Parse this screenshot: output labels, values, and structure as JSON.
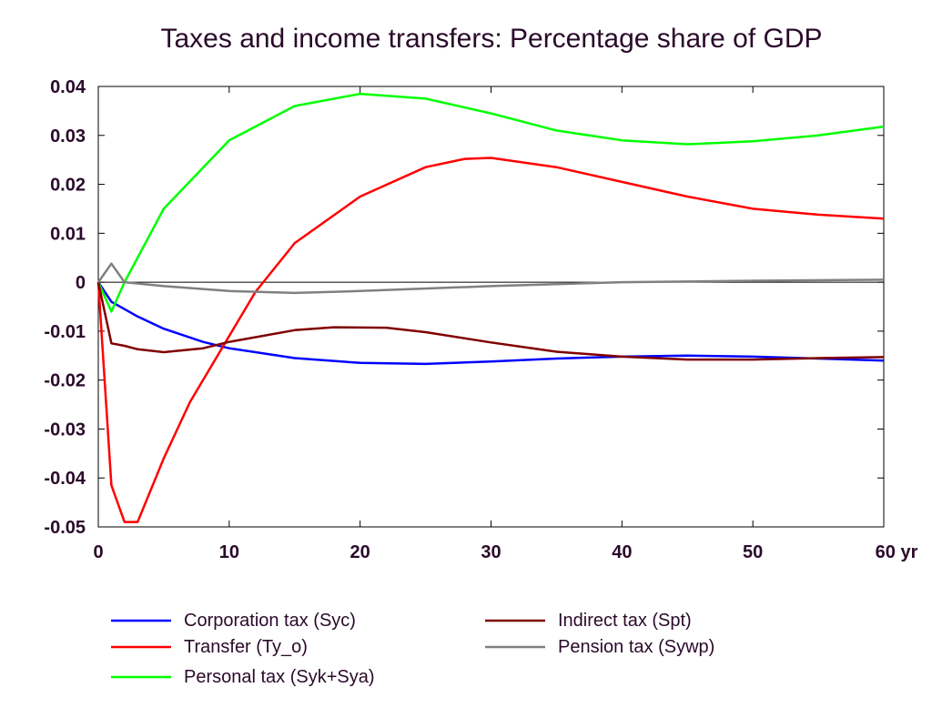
{
  "chart_data": {
    "type": "line",
    "title": "Taxes and income transfers: Percentage share of GDP",
    "xlabel": "",
    "ylabel": "",
    "xlim": [
      0,
      60
    ],
    "ylim": [
      -0.05,
      0.04
    ],
    "x_ticks": [
      0,
      10,
      20,
      30,
      40,
      50,
      60
    ],
    "x_tick_labels": [
      "0",
      "10",
      "20",
      "30",
      "40",
      "50",
      "60 yr"
    ],
    "y_ticks": [
      0.04,
      0.03,
      0.02,
      0.01,
      0,
      -0.01,
      -0.02,
      -0.03,
      -0.04,
      -0.05
    ],
    "y_tick_labels": [
      "0.04",
      "0.03",
      "0.02",
      "0.01",
      "0",
      "-0.01",
      "-0.02",
      "-0.03",
      "-0.04",
      "-0.05"
    ],
    "grid": false,
    "zero_line": true,
    "legend_position": "bottom",
    "series": [
      {
        "name": "Corporation tax (Syc)",
        "color": "#0000ff",
        "points": [
          [
            0,
            0
          ],
          [
            1,
            -0.004
          ],
          [
            2,
            -0.0055
          ],
          [
            3,
            -0.007
          ],
          [
            5,
            -0.0095
          ],
          [
            8,
            -0.0122
          ],
          [
            10,
            -0.0135
          ],
          [
            15,
            -0.0155
          ],
          [
            20,
            -0.0165
          ],
          [
            25,
            -0.0167
          ],
          [
            30,
            -0.0162
          ],
          [
            35,
            -0.0156
          ],
          [
            40,
            -0.0152
          ],
          [
            45,
            -0.015
          ],
          [
            50,
            -0.0152
          ],
          [
            55,
            -0.0156
          ],
          [
            60,
            -0.016
          ]
        ]
      },
      {
        "name": "Transfer (Ty_o)",
        "color": "#ff0000",
        "points": [
          [
            0,
            0
          ],
          [
            1,
            -0.0415
          ],
          [
            2,
            -0.049
          ],
          [
            3,
            -0.049
          ],
          [
            5,
            -0.036
          ],
          [
            7,
            -0.0245
          ],
          [
            10,
            -0.011
          ],
          [
            12,
            -0.002
          ],
          [
            15,
            0.008
          ],
          [
            20,
            0.0175
          ],
          [
            25,
            0.0235
          ],
          [
            28,
            0.0252
          ],
          [
            30,
            0.0254
          ],
          [
            35,
            0.0235
          ],
          [
            40,
            0.0205
          ],
          [
            45,
            0.0175
          ],
          [
            50,
            0.015
          ],
          [
            55,
            0.0138
          ],
          [
            60,
            0.013
          ]
        ]
      },
      {
        "name": "Personal tax (Syk+Sya)",
        "color": "#00ff00",
        "points": [
          [
            0,
            0
          ],
          [
            1,
            -0.006
          ],
          [
            2,
            0
          ],
          [
            5,
            0.015
          ],
          [
            10,
            0.029
          ],
          [
            15,
            0.036
          ],
          [
            20,
            0.0385
          ],
          [
            25,
            0.0375
          ],
          [
            30,
            0.0345
          ],
          [
            35,
            0.031
          ],
          [
            40,
            0.029
          ],
          [
            45,
            0.0282
          ],
          [
            50,
            0.0288
          ],
          [
            55,
            0.03
          ],
          [
            60,
            0.0318
          ]
        ]
      },
      {
        "name": "Indirect tax (Spt)",
        "color": "#800000",
        "points": [
          [
            0,
            0
          ],
          [
            1,
            -0.0125
          ],
          [
            2,
            -0.013
          ],
          [
            3,
            -0.0137
          ],
          [
            5,
            -0.0143
          ],
          [
            8,
            -0.0135
          ],
          [
            10,
            -0.0122
          ],
          [
            15,
            -0.0098
          ],
          [
            18,
            -0.0092
          ],
          [
            22,
            -0.0093
          ],
          [
            25,
            -0.0102
          ],
          [
            30,
            -0.0123
          ],
          [
            35,
            -0.0142
          ],
          [
            40,
            -0.0152
          ],
          [
            45,
            -0.0158
          ],
          [
            50,
            -0.0158
          ],
          [
            55,
            -0.0155
          ],
          [
            60,
            -0.0153
          ]
        ]
      },
      {
        "name": "Pension tax (Sywp)",
        "color": "#808080",
        "points": [
          [
            0,
            0
          ],
          [
            1,
            0.0038
          ],
          [
            2,
            0
          ],
          [
            5,
            -0.0008
          ],
          [
            10,
            -0.0018
          ],
          [
            15,
            -0.0022
          ],
          [
            20,
            -0.0018
          ],
          [
            30,
            -0.0008
          ],
          [
            40,
            0
          ],
          [
            50,
            0.0003
          ],
          [
            60,
            0.0005
          ]
        ]
      }
    ]
  }
}
